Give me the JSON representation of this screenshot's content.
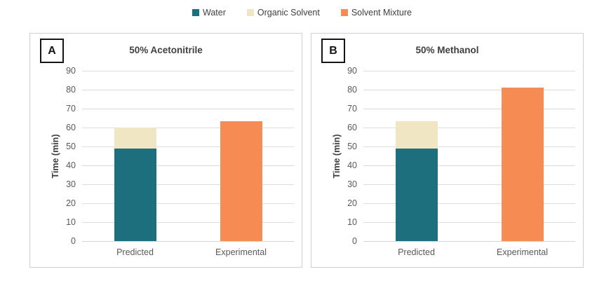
{
  "legend": {
    "items": [
      {
        "label": "Water",
        "color": "#1E6F7E"
      },
      {
        "label": "Organic Solvent",
        "color": "#F0E6C3"
      },
      {
        "label": "Solvent Mixture",
        "color": "#F68B53"
      }
    ]
  },
  "chart_data": [
    {
      "type": "bar",
      "stacked": true,
      "panel_label": "A",
      "title": "50% Acetonitrile",
      "xlabel": "",
      "ylabel": "Time (min)",
      "categories": [
        "Predicted",
        "Experimental"
      ],
      "series": [
        {
          "name": "Water",
          "color": "#1E6F7E",
          "values": [
            49,
            0
          ]
        },
        {
          "name": "Organic Solvent",
          "color": "#F0E6C3",
          "values": [
            11,
            0
          ]
        },
        {
          "name": "Solvent Mixture",
          "color": "#F68B53",
          "values": [
            0,
            63.5
          ]
        }
      ],
      "ylim": [
        0,
        90
      ],
      "ytick_step": 10,
      "grid": true,
      "legend_position": "top-center"
    },
    {
      "type": "bar",
      "stacked": true,
      "panel_label": "B",
      "title": "50% Methanol",
      "xlabel": "",
      "ylabel": "Time (min)",
      "categories": [
        "Predicted",
        "Experimental"
      ],
      "series": [
        {
          "name": "Water",
          "color": "#1E6F7E",
          "values": [
            49,
            0
          ]
        },
        {
          "name": "Organic Solvent",
          "color": "#F0E6C3",
          "values": [
            14.5,
            0
          ]
        },
        {
          "name": "Solvent Mixture",
          "color": "#F68B53",
          "values": [
            0,
            81
          ]
        }
      ],
      "ylim": [
        0,
        90
      ],
      "ytick_step": 10,
      "grid": true,
      "legend_position": "top-center"
    }
  ]
}
